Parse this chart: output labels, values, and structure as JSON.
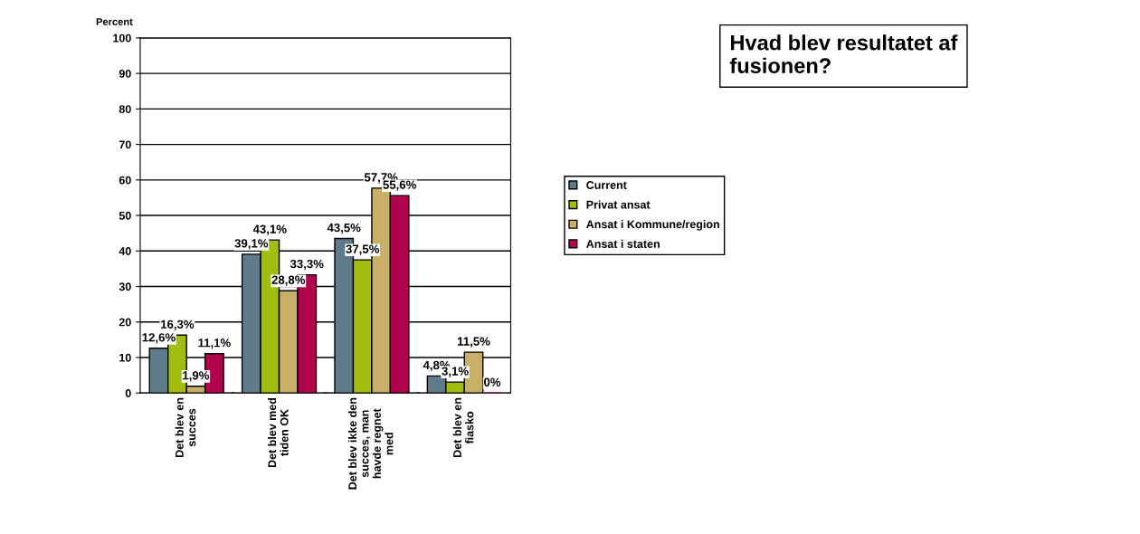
{
  "chart_data": {
    "type": "bar",
    "title": "Hvad blev resultatet af\nfusionen?",
    "ylabel": "Percent",
    "categories": [
      "Det blev en\nsucces",
      "Det blev med\ntiden OK",
      "Det blev ikke den\nsucces, man\nhavde regnet\nmed",
      "Det blev en\nfiasko"
    ],
    "series": [
      {
        "name": "Current",
        "color": "#5f7a8a",
        "values": [
          12.6,
          39.1,
          43.5,
          4.8
        ],
        "value_labels": [
          "12,6%",
          "39,1%",
          "43,5%",
          "4,8%"
        ]
      },
      {
        "name": "Privat ansat",
        "color": "#a3bc10",
        "values": [
          16.3,
          43.1,
          37.5,
          3.1
        ],
        "value_labels": [
          "16,3%",
          "43,1%",
          "37,5%",
          "3,1%"
        ]
      },
      {
        "name": "Ansat i Kommune/region",
        "color": "#c8b068",
        "values": [
          1.9,
          28.8,
          57.7,
          11.5
        ],
        "value_labels": [
          "1,9%",
          "28,8%",
          "57,7%",
          "11,5%"
        ]
      },
      {
        "name": "Ansat i staten",
        "color": "#b0044c",
        "values": [
          11.1,
          33.3,
          55.6,
          0
        ],
        "value_labels": [
          "11,1%",
          "33,3%",
          "55,6%",
          "0%"
        ]
      }
    ],
    "ylim": [
      0,
      100
    ],
    "yticks": [
      0,
      10,
      20,
      30,
      40,
      50,
      60,
      70,
      80,
      90,
      100
    ],
    "grid": "y",
    "legend": "right"
  }
}
